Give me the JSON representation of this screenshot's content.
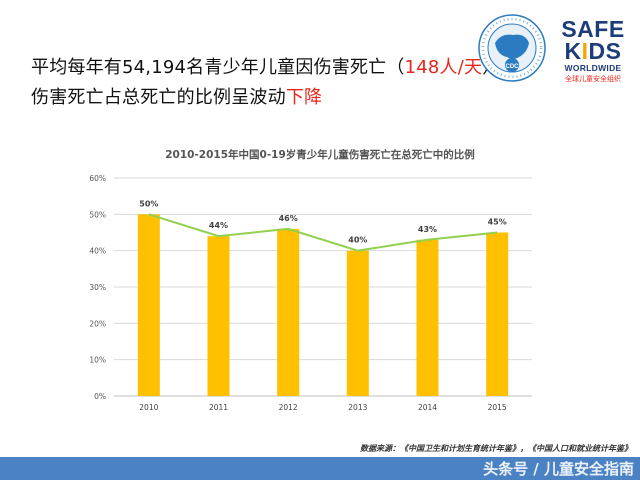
{
  "headline": {
    "line1_prefix": "平均每年有54,194名青少年儿童因伤害死亡（",
    "line1_highlight": "148人/天",
    "line1_suffix": "）",
    "line2_prefix": "伤害死亡占总死亡的比例呈波动",
    "line2_highlight": "下降"
  },
  "logos": {
    "cdc_text": "CDC",
    "safekids_line1": "SAFE",
    "safekids_line2_a": "K",
    "safekids_line2_b": "I",
    "safekids_line2_c": "DS",
    "safekids_line3": "WORLDWIDE",
    "safekids_line4": "全球儿童安全组织"
  },
  "source": {
    "text": "数据来源：《中国卫生和计划生育统计年鉴》，《中国人口和就业统计年鉴》"
  },
  "watermark": {
    "text": "头条号 / 儿童安全指南"
  },
  "colors": {
    "bar": "#ffc000",
    "line": "#92d050",
    "highlight": "#e8261c",
    "bottom_bar": "#4a82c4"
  },
  "chart_data": {
    "type": "bar",
    "title": "2010-2015年中国0-19岁青少年儿童伤害死亡在总死亡中的比例",
    "categories": [
      "2010",
      "2011",
      "2012",
      "2013",
      "2014",
      "2015"
    ],
    "values": [
      50,
      44,
      46,
      40,
      43,
      45
    ],
    "data_labels": [
      "50%",
      "44%",
      "46%",
      "40%",
      "43%",
      "45%"
    ],
    "overlay_line": true,
    "ylim": [
      0,
      60
    ],
    "yticks": [
      "0%",
      "10%",
      "20%",
      "30%",
      "40%",
      "50%",
      "60%"
    ],
    "grid": true,
    "legend": "none",
    "xlabel": "",
    "ylabel": ""
  }
}
